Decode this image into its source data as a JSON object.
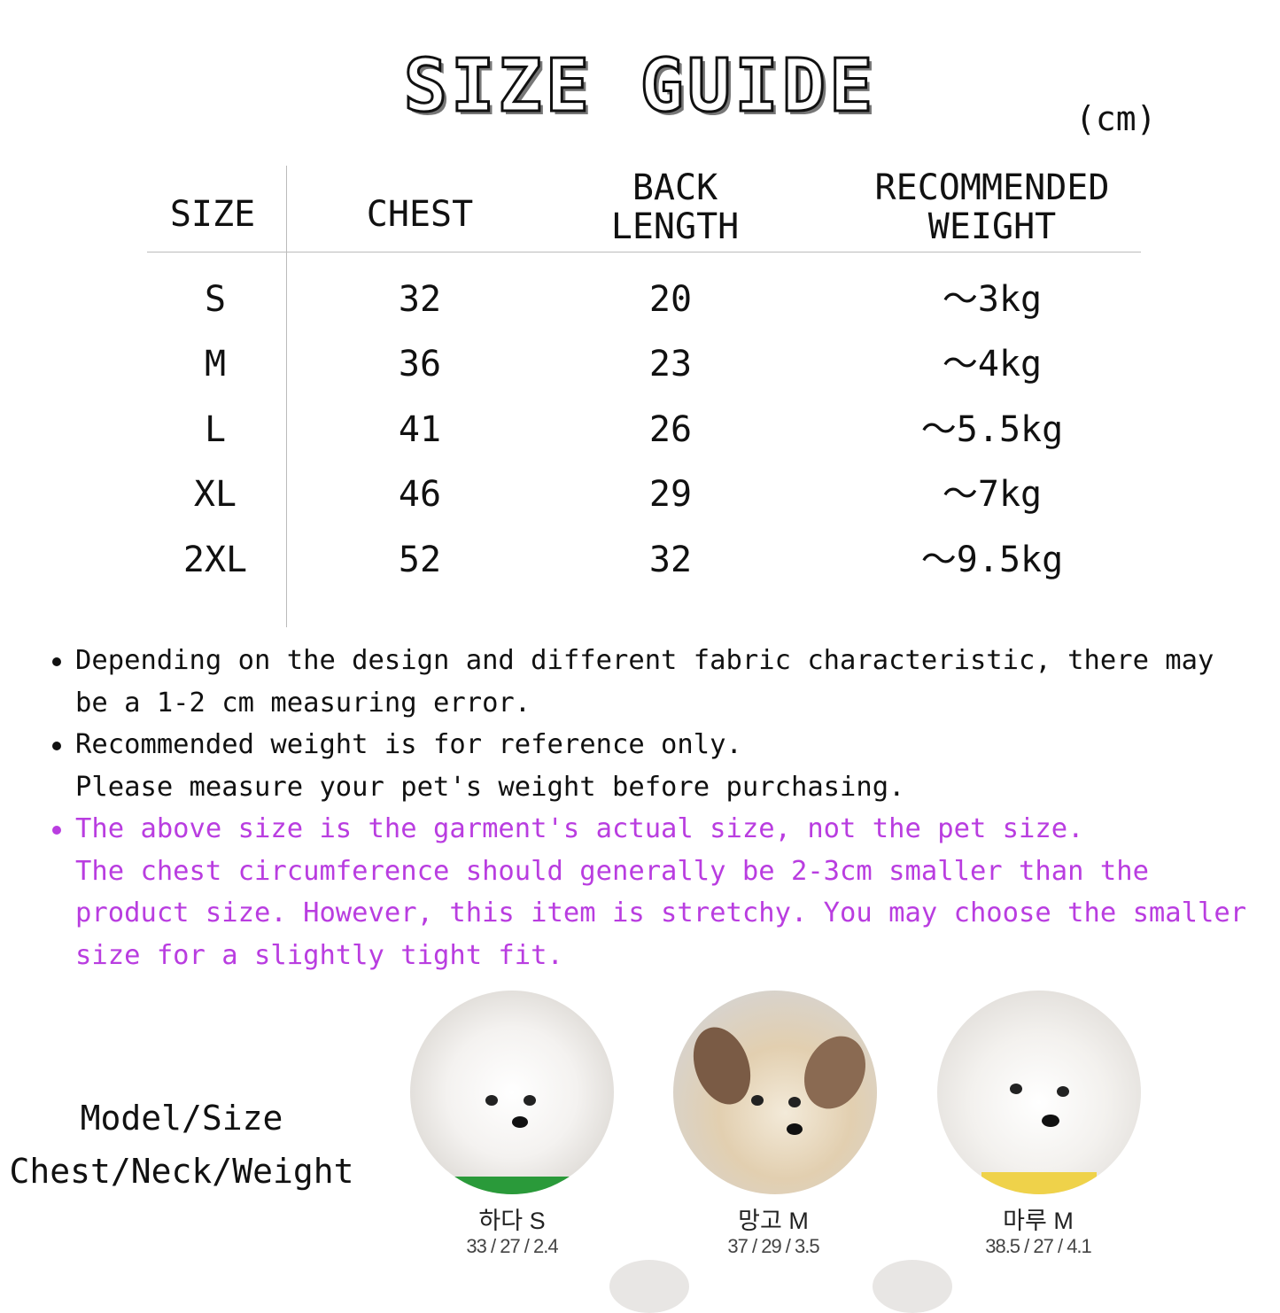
{
  "title": "SIZE GUIDE",
  "unit": "(cm)",
  "table": {
    "headers": [
      "SIZE",
      "CHEST",
      "BACK\nLENGTH",
      "RECOMMENDED\nWEIGHT"
    ],
    "rows": [
      [
        "S",
        "32",
        "20",
        "～3kg"
      ],
      [
        "M",
        "36",
        "23",
        "～4kg"
      ],
      [
        "L",
        "41",
        "26",
        "～5.5kg"
      ],
      [
        "XL",
        "46",
        "29",
        "～7kg"
      ],
      [
        "2XL",
        "52",
        "32",
        "～9.5kg"
      ]
    ]
  },
  "notes": [
    {
      "text": "Depending on the design and different fabric characteristic, there may\nbe a 1-2 cm measuring error.",
      "highlight": false
    },
    {
      "text": "Recommended weight is for reference only.\nPlease measure your pet's weight before purchasing.",
      "highlight": false
    },
    {
      "text": "The above size is the garment's actual size, not the pet size.\nThe chest circumference should generally be 2-3cm smaller than the\nproduct size. However, this item is stretchy. You may choose the smaller\nsize for a slightly tight fit.",
      "highlight": true
    }
  ],
  "colors": {
    "highlight": "#b93de0",
    "text": "#111111"
  },
  "models": {
    "label_line1": "Model/Size",
    "label_line2": "Chest/Neck/Weight",
    "dogs": [
      {
        "name": "하다 S",
        "measurements": "33 / 27 / 2.4",
        "icon": "white-bichon-photo"
      },
      {
        "name": "망고 M",
        "measurements": "37 / 29 / 3.5",
        "icon": "yorkie-mix-photo"
      },
      {
        "name": "마루 M",
        "measurements": "38.5 / 27 / 4.1",
        "icon": "maltese-photo"
      }
    ]
  }
}
